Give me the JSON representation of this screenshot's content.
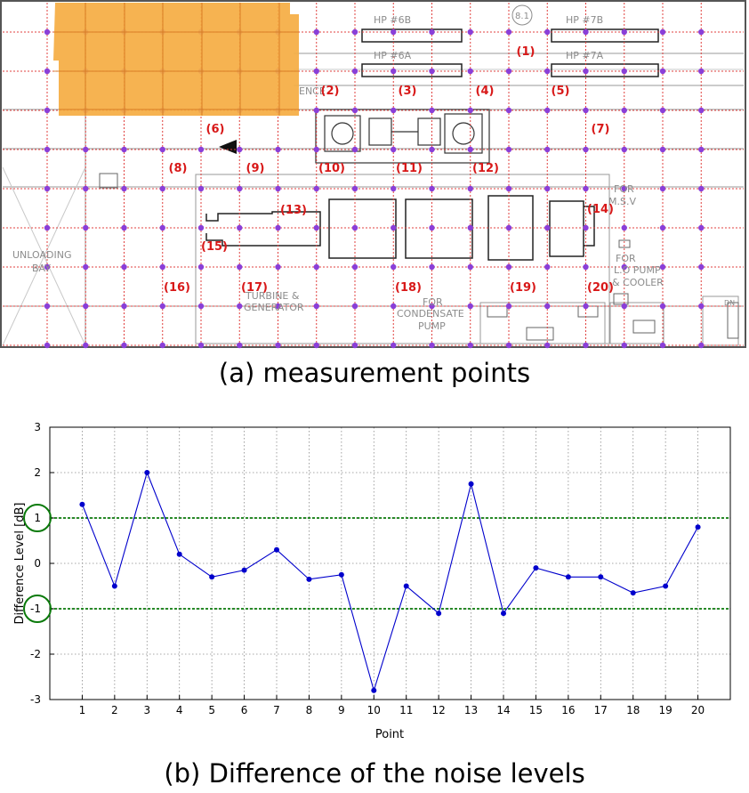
{
  "figure_a": {
    "caption": "(a) measurement points",
    "point_labels": [
      "(1)",
      "(2)",
      "(3)",
      "(4)",
      "(5)",
      "(6)",
      "(7)",
      "(8)",
      "(9)",
      "(10)",
      "(11)",
      "(12)",
      "(13)",
      "(14)",
      "(15)",
      "(16)",
      "(17)",
      "(18)",
      "(19)",
      "(20)"
    ],
    "plan_texts": {
      "hp6b": "HP #6B",
      "hp6a": "HP #6A",
      "hp7b": "HP #7B",
      "hp7a": "HP #7A",
      "circle_id": "8.1",
      "ence": "ENCE",
      "unloading": "UNLOADING",
      "bay": "BAY",
      "for_lo": "FOR",
      "lo_pump": "L.O PUMP",
      "cooler": "& COOLER",
      "for_msv": "FOR",
      "msv": "M.S.V",
      "turbine": "TURBINE &",
      "generator": "GENERATOR",
      "for_cond": "FOR",
      "condensate": "CONDENSATE",
      "pump": "PUMP",
      "dn": "DN"
    },
    "colors": {
      "grid": "#e0403f",
      "dot": "#8a3fd8",
      "redacted": "#f5ad44",
      "label": "#d81818",
      "plan": "#9a9a9a"
    }
  },
  "figure_b": {
    "caption": "(b) Difference of the noise levels"
  },
  "chart_data": {
    "type": "line",
    "xlabel": "Point",
    "ylabel": "Difference Level [dB]",
    "x": [
      1,
      2,
      3,
      4,
      5,
      6,
      7,
      8,
      9,
      10,
      11,
      12,
      13,
      14,
      15,
      16,
      17,
      18,
      19,
      20
    ],
    "series": [
      {
        "values": [
          1.3,
          -0.5,
          2.0,
          0.2,
          -0.3,
          -0.15,
          0.3,
          -0.35,
          -0.25,
          -2.8,
          -0.5,
          -1.1,
          1.75,
          -1.1,
          -0.1,
          -0.3,
          -0.3,
          -0.65,
          -0.5,
          0.8
        ],
        "color": "#0000cc"
      }
    ],
    "xlim": [
      0,
      21
    ],
    "ylim": [
      -3,
      3
    ],
    "xticks": [
      1,
      2,
      3,
      4,
      5,
      6,
      7,
      8,
      9,
      10,
      11,
      12,
      13,
      14,
      15,
      16,
      17,
      18,
      19,
      20
    ],
    "yticks": [
      -3,
      -2,
      -1,
      0,
      1,
      2,
      3
    ],
    "grid": true,
    "reference_lines": [
      1,
      -1
    ],
    "reference_color": "#0b7a0b",
    "highlighted_ticks": [
      1,
      -1
    ]
  }
}
